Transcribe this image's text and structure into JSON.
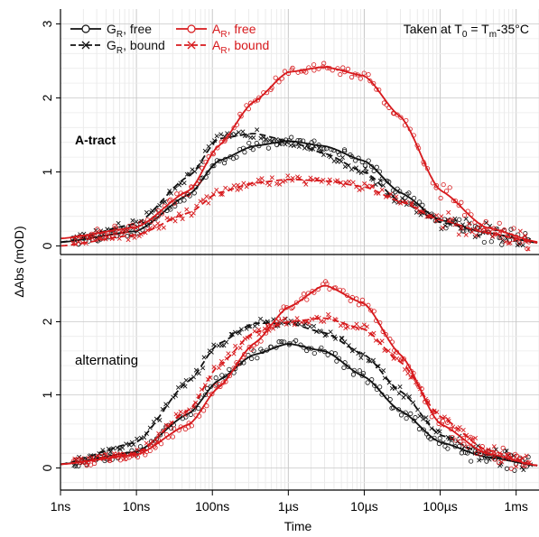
{
  "colors": {
    "G": "#111111",
    "A": "#d7191c",
    "grid": "#d8d8d8",
    "axis": "#000000"
  },
  "chart_data": {
    "type": "scatter",
    "title": "",
    "xlabel": "Time",
    "ylabel": "ΔAbs (mOD)",
    "x_scale": "log",
    "xlim": [
      "1ns",
      "2ms"
    ],
    "x_ticks": [
      "1ns",
      "10ns",
      "100ns",
      "1µs",
      "10µs",
      "100µs",
      "1ms"
    ],
    "annotation": {
      "prefix": "Taken at T",
      "sub0": "0",
      "mid": " = T",
      "subm": "m",
      "suffix": "-35°C"
    },
    "legend": {
      "placement": "top-left",
      "entries": [
        {
          "symbol": "G",
          "sub": "R",
          "label": ", free",
          "color": "#111111",
          "marker": "circle",
          "line": "solid"
        },
        {
          "symbol": "G",
          "sub": "R",
          "label": ", bound",
          "color": "#111111",
          "marker": "cross",
          "line": "dashed"
        },
        {
          "symbol": "A",
          "sub": "R",
          "label": ", free",
          "color": "#d7191c",
          "marker": "circle",
          "line": "solid"
        },
        {
          "symbol": "A",
          "sub": "R",
          "label": ", bound",
          "color": "#d7191c",
          "marker": "cross",
          "line": "dashed"
        }
      ]
    },
    "panels": [
      {
        "label": "A-tract",
        "label_bold": true,
        "ylim": [
          -0.1,
          3.1
        ],
        "y_ticks": [
          "0",
          "1",
          "2",
          "3"
        ],
        "series": [
          {
            "marker": "circle",
            "line": "solid",
            "color": "#111111",
            "x_ns": [
              1,
              10,
              50,
              120,
              350,
              1000,
              3000,
              10000,
              30000,
              100000,
              400000,
              2000000
            ],
            "y": [
              0.05,
              0.2,
              0.7,
              1.15,
              1.35,
              1.42,
              1.35,
              1.15,
              0.72,
              0.35,
              0.18,
              0.04
            ]
          },
          {
            "marker": "cross",
            "line": "dashed",
            "color": "#111111",
            "x_ns": [
              1,
              10,
              50,
              120,
              350,
              1000,
              3000,
              10000,
              30000,
              100000,
              400000,
              2000000
            ],
            "y": [
              0.05,
              0.3,
              0.95,
              1.45,
              1.52,
              1.42,
              1.25,
              1.0,
              0.6,
              0.32,
              0.18,
              0.04
            ]
          },
          {
            "marker": "circle",
            "line": "solid",
            "color": "#d7191c",
            "x_ns": [
              1,
              10,
              50,
              120,
              350,
              1000,
              3000,
              10000,
              30000,
              100000,
              400000,
              2000000
            ],
            "y": [
              0.1,
              0.25,
              0.75,
              1.35,
              1.95,
              2.35,
              2.42,
              2.3,
              1.75,
              0.75,
              0.25,
              0.05
            ]
          },
          {
            "marker": "cross",
            "line": "dashed",
            "color": "#d7191c",
            "x_ns": [
              1,
              10,
              50,
              120,
              350,
              1000,
              3000,
              10000,
              30000,
              100000,
              400000,
              2000000
            ],
            "y": [
              0.0,
              0.15,
              0.45,
              0.72,
              0.85,
              0.9,
              0.88,
              0.8,
              0.6,
              0.35,
              0.18,
              0.04
            ]
          }
        ]
      },
      {
        "label": "alternating",
        "label_bold": false,
        "ylim": [
          -0.2,
          2.6
        ],
        "y_ticks": [
          "0",
          "1",
          "2"
        ],
        "series": [
          {
            "marker": "circle",
            "line": "solid",
            "color": "#111111",
            "x_ns": [
              1,
              10,
              50,
              120,
              350,
              1000,
              3000,
              10000,
              30000,
              100000,
              400000,
              2000000
            ],
            "y": [
              0.05,
              0.22,
              0.75,
              1.2,
              1.55,
              1.7,
              1.6,
              1.25,
              0.78,
              0.35,
              0.15,
              0.03
            ]
          },
          {
            "marker": "cross",
            "line": "dashed",
            "color": "#111111",
            "x_ns": [
              1,
              10,
              50,
              120,
              350,
              1000,
              3000,
              10000,
              30000,
              100000,
              400000,
              2000000
            ],
            "y": [
              0.05,
              0.35,
              1.2,
              1.7,
              1.98,
              1.98,
              1.85,
              1.55,
              1.05,
              0.45,
              0.18,
              0.03
            ]
          },
          {
            "marker": "circle",
            "line": "solid",
            "color": "#d7191c",
            "x_ns": [
              1,
              10,
              50,
              120,
              350,
              1000,
              3000,
              10000,
              30000,
              100000,
              400000,
              2000000
            ],
            "y": [
              0.05,
              0.18,
              0.6,
              1.1,
              1.7,
              2.2,
              2.5,
              2.25,
              1.55,
              0.6,
              0.2,
              0.03
            ]
          },
          {
            "marker": "cross",
            "line": "dashed",
            "color": "#d7191c",
            "x_ns": [
              1,
              10,
              50,
              120,
              350,
              1000,
              3000,
              10000,
              30000,
              100000,
              400000,
              2000000
            ],
            "y": [
              0.05,
              0.2,
              0.8,
              1.4,
              1.85,
              2.0,
              2.05,
              1.9,
              1.45,
              0.7,
              0.25,
              0.03
            ]
          }
        ]
      }
    ]
  }
}
